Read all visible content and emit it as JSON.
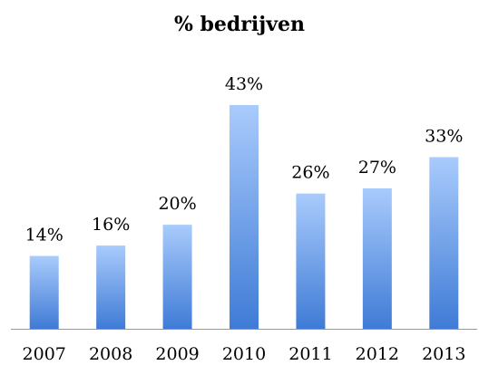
{
  "chart_data": {
    "type": "bar",
    "title": "% bedrijven",
    "categories": [
      "2007",
      "2008",
      "2009",
      "2010",
      "2011",
      "2012",
      "2013"
    ],
    "values": [
      14,
      16,
      20,
      43,
      26,
      27,
      33
    ],
    "value_labels": [
      "14%",
      "16%",
      "20%",
      "43%",
      "26%",
      "27%",
      "33%"
    ],
    "color": "#4f8be0"
  }
}
